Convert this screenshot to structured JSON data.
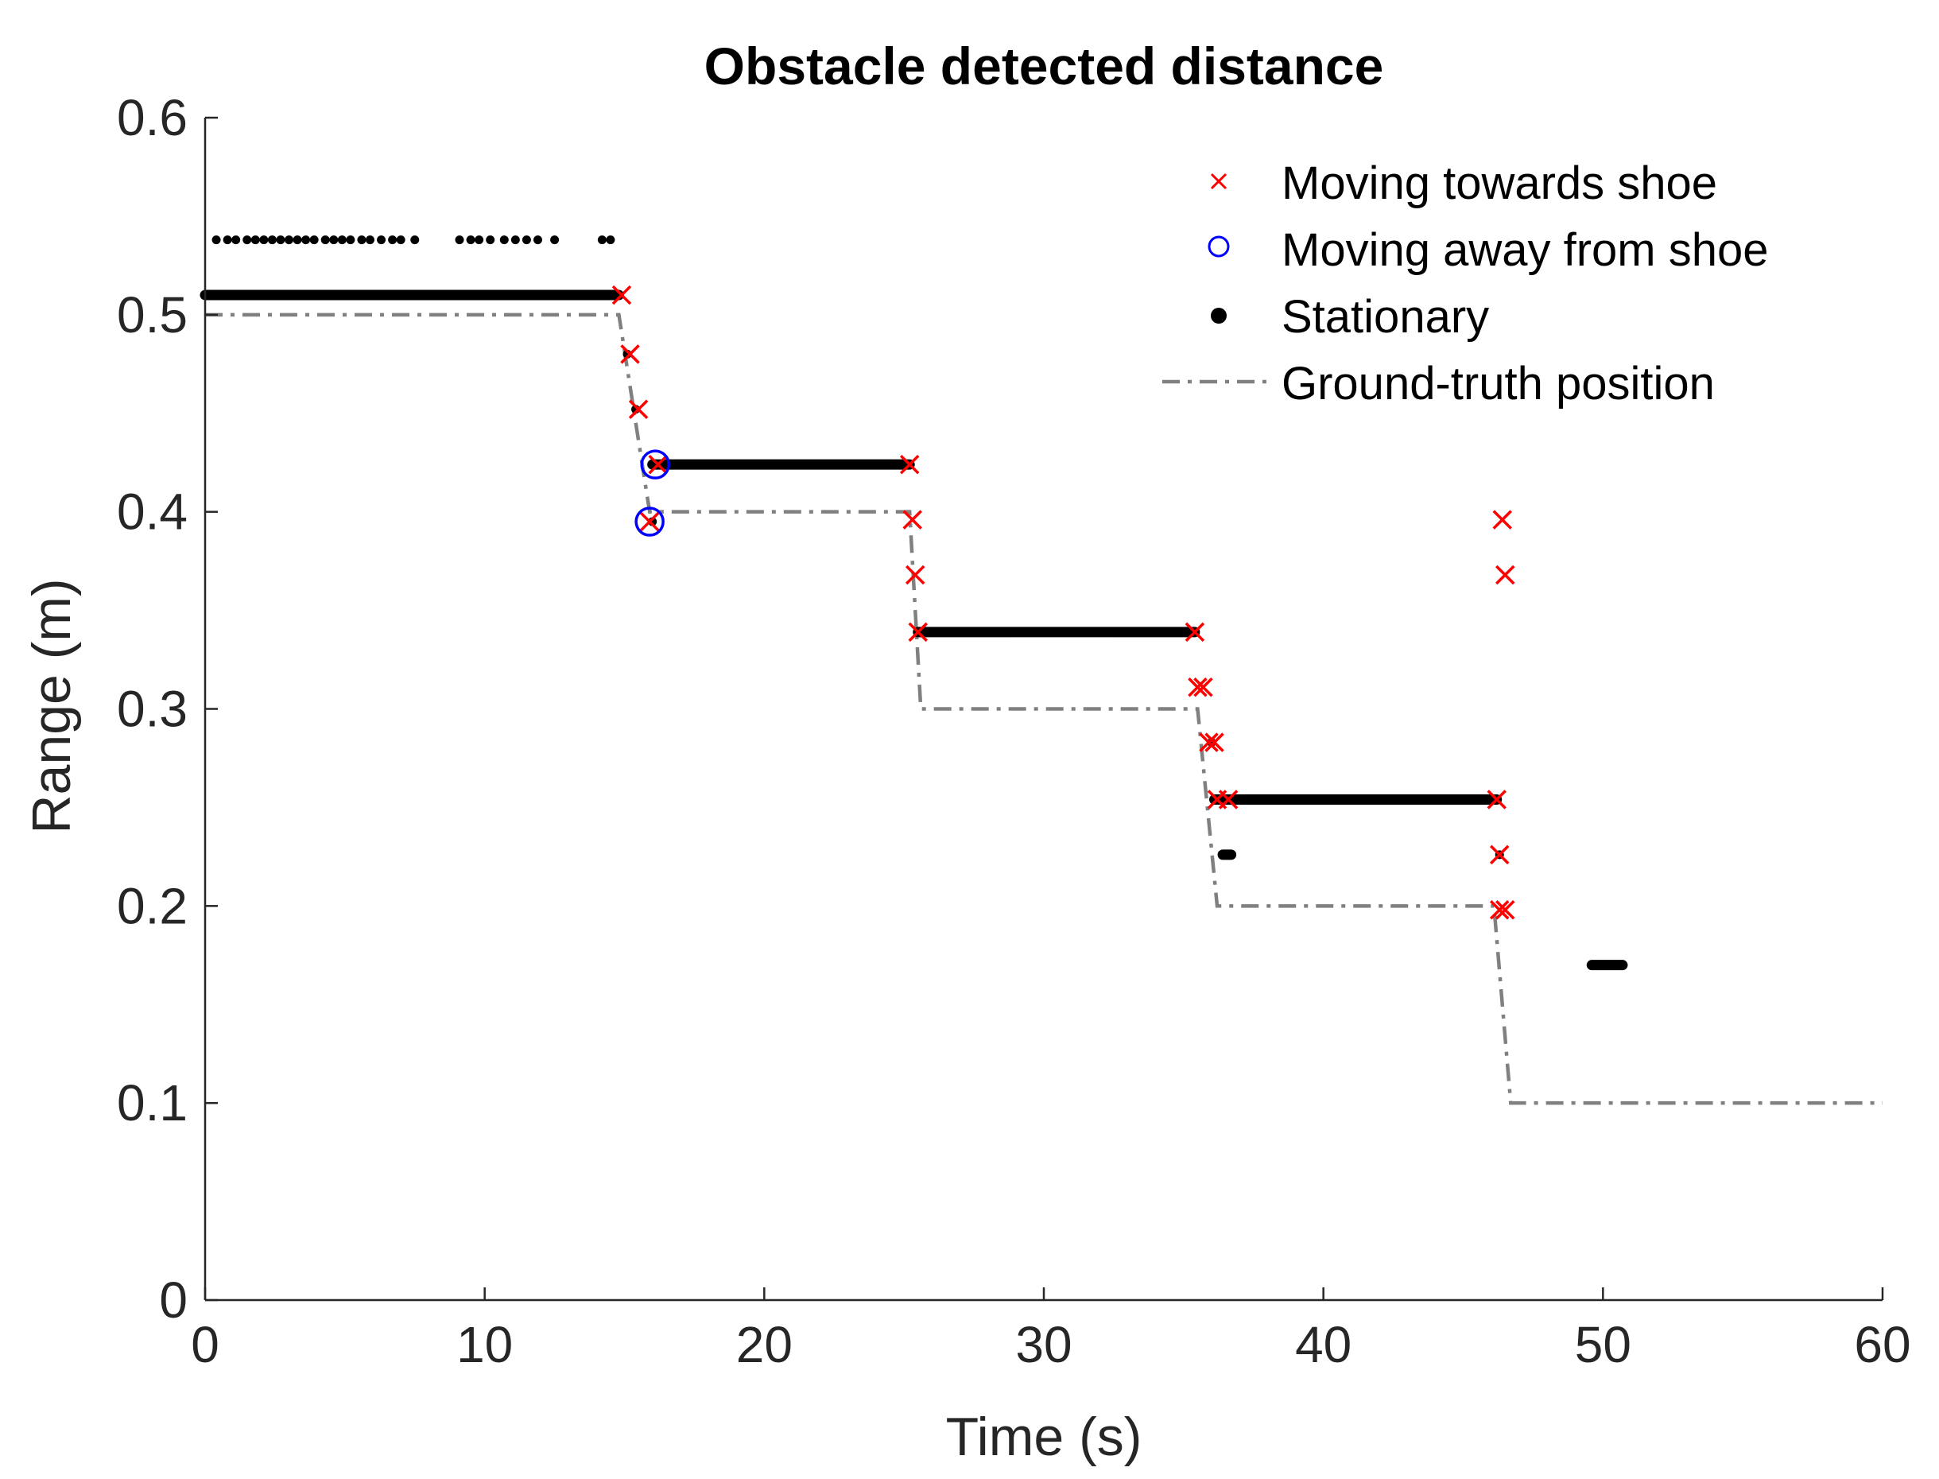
{
  "chart_data": {
    "type": "scatter",
    "title": "Obstacle detected distance",
    "xlabel": "Time (s)",
    "ylabel": "Range (m)",
    "xlim": [
      0,
      60
    ],
    "ylim": [
      0,
      0.6
    ],
    "xticks": [
      0,
      10,
      20,
      30,
      40,
      50,
      60
    ],
    "yticks": [
      0,
      0.1,
      0.2,
      0.3,
      0.4,
      0.5,
      0.6
    ],
    "xtick_labels": [
      "0",
      "10",
      "20",
      "30",
      "40",
      "50",
      "60"
    ],
    "ytick_labels": [
      "0",
      "0.1",
      "0.2",
      "0.3",
      "0.4",
      "0.5",
      "0.6"
    ],
    "grid": false,
    "legend_position": "top-right",
    "colors": {
      "towards": "#ff0000",
      "away": "#0000ff",
      "stationary": "#000000",
      "ground_truth": "#808080",
      "axis": "#262626"
    },
    "series": [
      {
        "name": "Moving towards shoe",
        "marker": "x",
        "points": [
          [
            14.9,
            0.51
          ],
          [
            15.2,
            0.48
          ],
          [
            15.5,
            0.452
          ],
          [
            16.2,
            0.424
          ],
          [
            15.9,
            0.395
          ],
          [
            25.2,
            0.424
          ],
          [
            25.3,
            0.396
          ],
          [
            25.4,
            0.368
          ],
          [
            25.5,
            0.339
          ],
          [
            35.4,
            0.339
          ],
          [
            35.5,
            0.311
          ],
          [
            35.7,
            0.311
          ],
          [
            35.9,
            0.283
          ],
          [
            36.1,
            0.283
          ],
          [
            36.2,
            0.254
          ],
          [
            36.6,
            0.254
          ],
          [
            46.2,
            0.254
          ],
          [
            46.3,
            0.226
          ],
          [
            46.3,
            0.198
          ],
          [
            46.5,
            0.198
          ],
          [
            46.4,
            0.396
          ],
          [
            46.5,
            0.368
          ]
        ]
      },
      {
        "name": "Moving away from shoe",
        "marker": "o",
        "points": [
          [
            16.1,
            0.424
          ],
          [
            15.9,
            0.395
          ]
        ]
      },
      {
        "name": "Stationary",
        "marker": ".",
        "segments": [
          [
            0.0,
            14.8,
            0.51
          ],
          [
            16.0,
            25.2,
            0.424
          ],
          [
            25.5,
            35.4,
            0.339
          ],
          [
            36.1,
            46.2,
            0.254
          ],
          [
            49.6,
            50.7,
            0.17
          ],
          [
            36.4,
            36.7,
            0.226
          ]
        ],
        "points": [
          [
            0.4,
            0.538
          ],
          [
            0.8,
            0.538
          ],
          [
            1.1,
            0.538
          ],
          [
            1.5,
            0.538
          ],
          [
            1.8,
            0.538
          ],
          [
            2.1,
            0.538
          ],
          [
            2.4,
            0.538
          ],
          [
            2.7,
            0.538
          ],
          [
            3.0,
            0.538
          ],
          [
            3.3,
            0.538
          ],
          [
            3.6,
            0.538
          ],
          [
            3.9,
            0.538
          ],
          [
            4.3,
            0.538
          ],
          [
            4.6,
            0.538
          ],
          [
            4.9,
            0.538
          ],
          [
            5.2,
            0.538
          ],
          [
            5.6,
            0.538
          ],
          [
            5.9,
            0.538
          ],
          [
            6.3,
            0.538
          ],
          [
            6.7,
            0.538
          ],
          [
            7.0,
            0.538
          ],
          [
            7.5,
            0.538
          ],
          [
            9.1,
            0.538
          ],
          [
            9.5,
            0.538
          ],
          [
            9.8,
            0.538
          ],
          [
            10.2,
            0.538
          ],
          [
            10.7,
            0.538
          ],
          [
            11.1,
            0.538
          ],
          [
            11.5,
            0.538
          ],
          [
            11.9,
            0.538
          ],
          [
            12.5,
            0.538
          ],
          [
            14.2,
            0.538
          ],
          [
            14.5,
            0.538
          ],
          [
            15.1,
            0.48
          ],
          [
            15.4,
            0.452
          ],
          [
            16.0,
            0.395
          ],
          [
            36.0,
            0.283
          ],
          [
            46.3,
            0.226
          ]
        ]
      },
      {
        "name": "Ground-truth position",
        "line": "dash-dot",
        "points": [
          [
            0,
            0.5
          ],
          [
            14.8,
            0.5
          ],
          [
            15.9,
            0.4
          ],
          [
            25.2,
            0.4
          ],
          [
            25.6,
            0.3
          ],
          [
            35.5,
            0.3
          ],
          [
            36.2,
            0.2
          ],
          [
            46.1,
            0.2
          ],
          [
            46.7,
            0.1
          ],
          [
            60,
            0.1
          ]
        ]
      }
    ]
  }
}
